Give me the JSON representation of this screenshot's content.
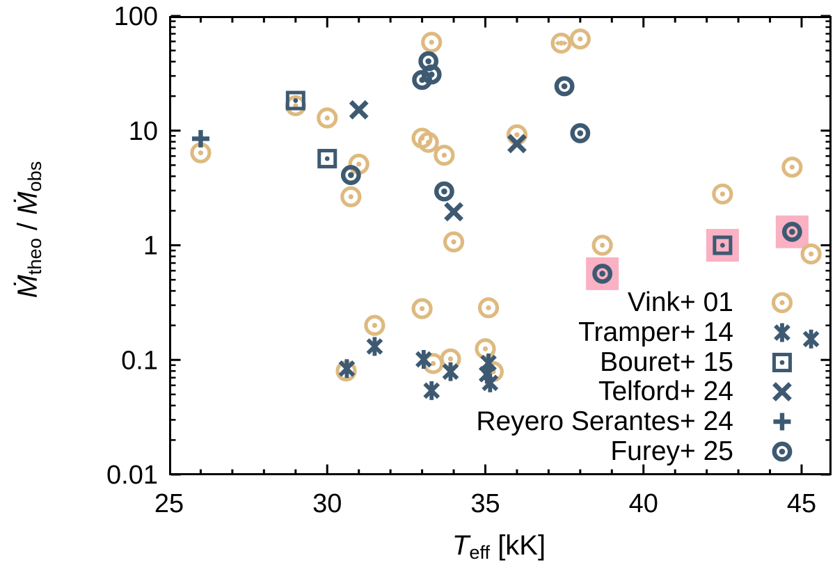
{
  "chart_data": {
    "type": "scatter",
    "title": "",
    "xlabel": {
      "main": "T",
      "sub": "eff",
      "rest": " [kK]"
    },
    "ylabel": {
      "m1": "Ṁ",
      "sub1": "theo",
      "sep": " / ",
      "m2": "Ṁ",
      "sub2": "obs"
    },
    "x_axis": {
      "min": 25,
      "max": 45.95,
      "major_ticks": [
        25,
        30,
        35,
        40,
        45
      ],
      "minor_step": 1,
      "grid": false
    },
    "y_axis": {
      "scale": "log",
      "min": 0.01,
      "max": 100,
      "tick_labels": [
        "100",
        "10",
        "1",
        "0.1",
        "0.01"
      ],
      "tick_values": [
        100,
        10,
        1,
        0.1,
        0.01
      ],
      "grid": false
    },
    "colors": {
      "gold": "#DEBA80",
      "blue": "#3D5A72",
      "highlight": "#F9B1C3",
      "axis": "#000000"
    },
    "legend_position": "bottom-right-inside",
    "series": [
      {
        "name": "Vink+ 01",
        "marker": "circle-dot",
        "color": "#DEBA80",
        "points": [
          {
            "t": 26.0,
            "v": 6.4
          },
          {
            "t": 29.0,
            "v": 16.5
          },
          {
            "t": 30.0,
            "v": 12.9
          },
          {
            "t": 30.6,
            "v": 0.08
          },
          {
            "t": 30.75,
            "v": 2.65
          },
          {
            "t": 31.0,
            "v": 5.1
          },
          {
            "t": 31.5,
            "v": 0.2
          },
          {
            "t": 33.0,
            "v": 8.6
          },
          {
            "t": 33.2,
            "v": 7.9
          },
          {
            "t": 33.3,
            "v": 59
          },
          {
            "t": 33.0,
            "v": 0.28
          },
          {
            "t": 33.35,
            "v": 0.093
          },
          {
            "t": 33.7,
            "v": 6.1
          },
          {
            "t": 33.9,
            "v": 0.102
          },
          {
            "t": 34.0,
            "v": 1.07
          },
          {
            "t": 35.1,
            "v": 0.285
          },
          {
            "t": 35.0,
            "v": 0.125
          },
          {
            "t": 35.25,
            "v": 0.079
          },
          {
            "t": 36.0,
            "v": 9.2
          },
          {
            "t": 37.4,
            "v": 58,
            "xerr": true
          },
          {
            "t": 38.0,
            "v": 63
          },
          {
            "t": 38.7,
            "v": 1.0
          },
          {
            "t": 42.5,
            "v": 2.8
          },
          {
            "t": 44.7,
            "v": 4.8
          },
          {
            "t": 45.3,
            "v": 0.84
          }
        ]
      },
      {
        "name": "Tramper+ 14",
        "marker": "asterisk",
        "color": "#3D5A72",
        "points": [
          {
            "t": 30.62,
            "v": 0.084
          },
          {
            "t": 31.5,
            "v": 0.131
          },
          {
            "t": 33.05,
            "v": 0.101
          },
          {
            "t": 33.3,
            "v": 0.054
          },
          {
            "t": 33.9,
            "v": 0.079
          },
          {
            "t": 35.1,
            "v": 0.094
          },
          {
            "t": 35.05,
            "v": 0.075
          },
          {
            "t": 35.15,
            "v": 0.063
          },
          {
            "t": 45.3,
            "v": 0.152
          }
        ]
      },
      {
        "name": "Bouret+ 15",
        "marker": "square-dot",
        "color": "#3D5A72",
        "points": [
          {
            "t": 29.0,
            "v": 18.3
          },
          {
            "t": 30.0,
            "v": 5.7
          },
          {
            "t": 42.5,
            "v": 1.0,
            "hl": true
          }
        ]
      },
      {
        "name": "Telford+ 24",
        "marker": "x",
        "color": "#3D5A72",
        "points": [
          {
            "t": 31.0,
            "v": 15.2
          },
          {
            "t": 34.0,
            "v": 1.96
          },
          {
            "t": 36.0,
            "v": 7.7
          }
        ]
      },
      {
        "name": "Reyero Serantes+ 24",
        "marker": "plus",
        "color": "#3D5A72",
        "points": [
          {
            "t": 26.0,
            "v": 8.5
          }
        ]
      },
      {
        "name": "Furey+ 25",
        "marker": "circle-dot-bold",
        "color": "#3D5A72",
        "points": [
          {
            "t": 30.75,
            "v": 4.1
          },
          {
            "t": 33.0,
            "v": 27.7
          },
          {
            "t": 33.3,
            "v": 30.9
          },
          {
            "t": 33.2,
            "v": 40.3
          },
          {
            "t": 33.7,
            "v": 2.95
          },
          {
            "t": 37.5,
            "v": 24.4
          },
          {
            "t": 38.0,
            "v": 9.5
          },
          {
            "t": 38.7,
            "v": 0.565,
            "hl": true
          },
          {
            "t": 44.7,
            "v": 1.31,
            "hl": true
          }
        ]
      }
    ]
  }
}
